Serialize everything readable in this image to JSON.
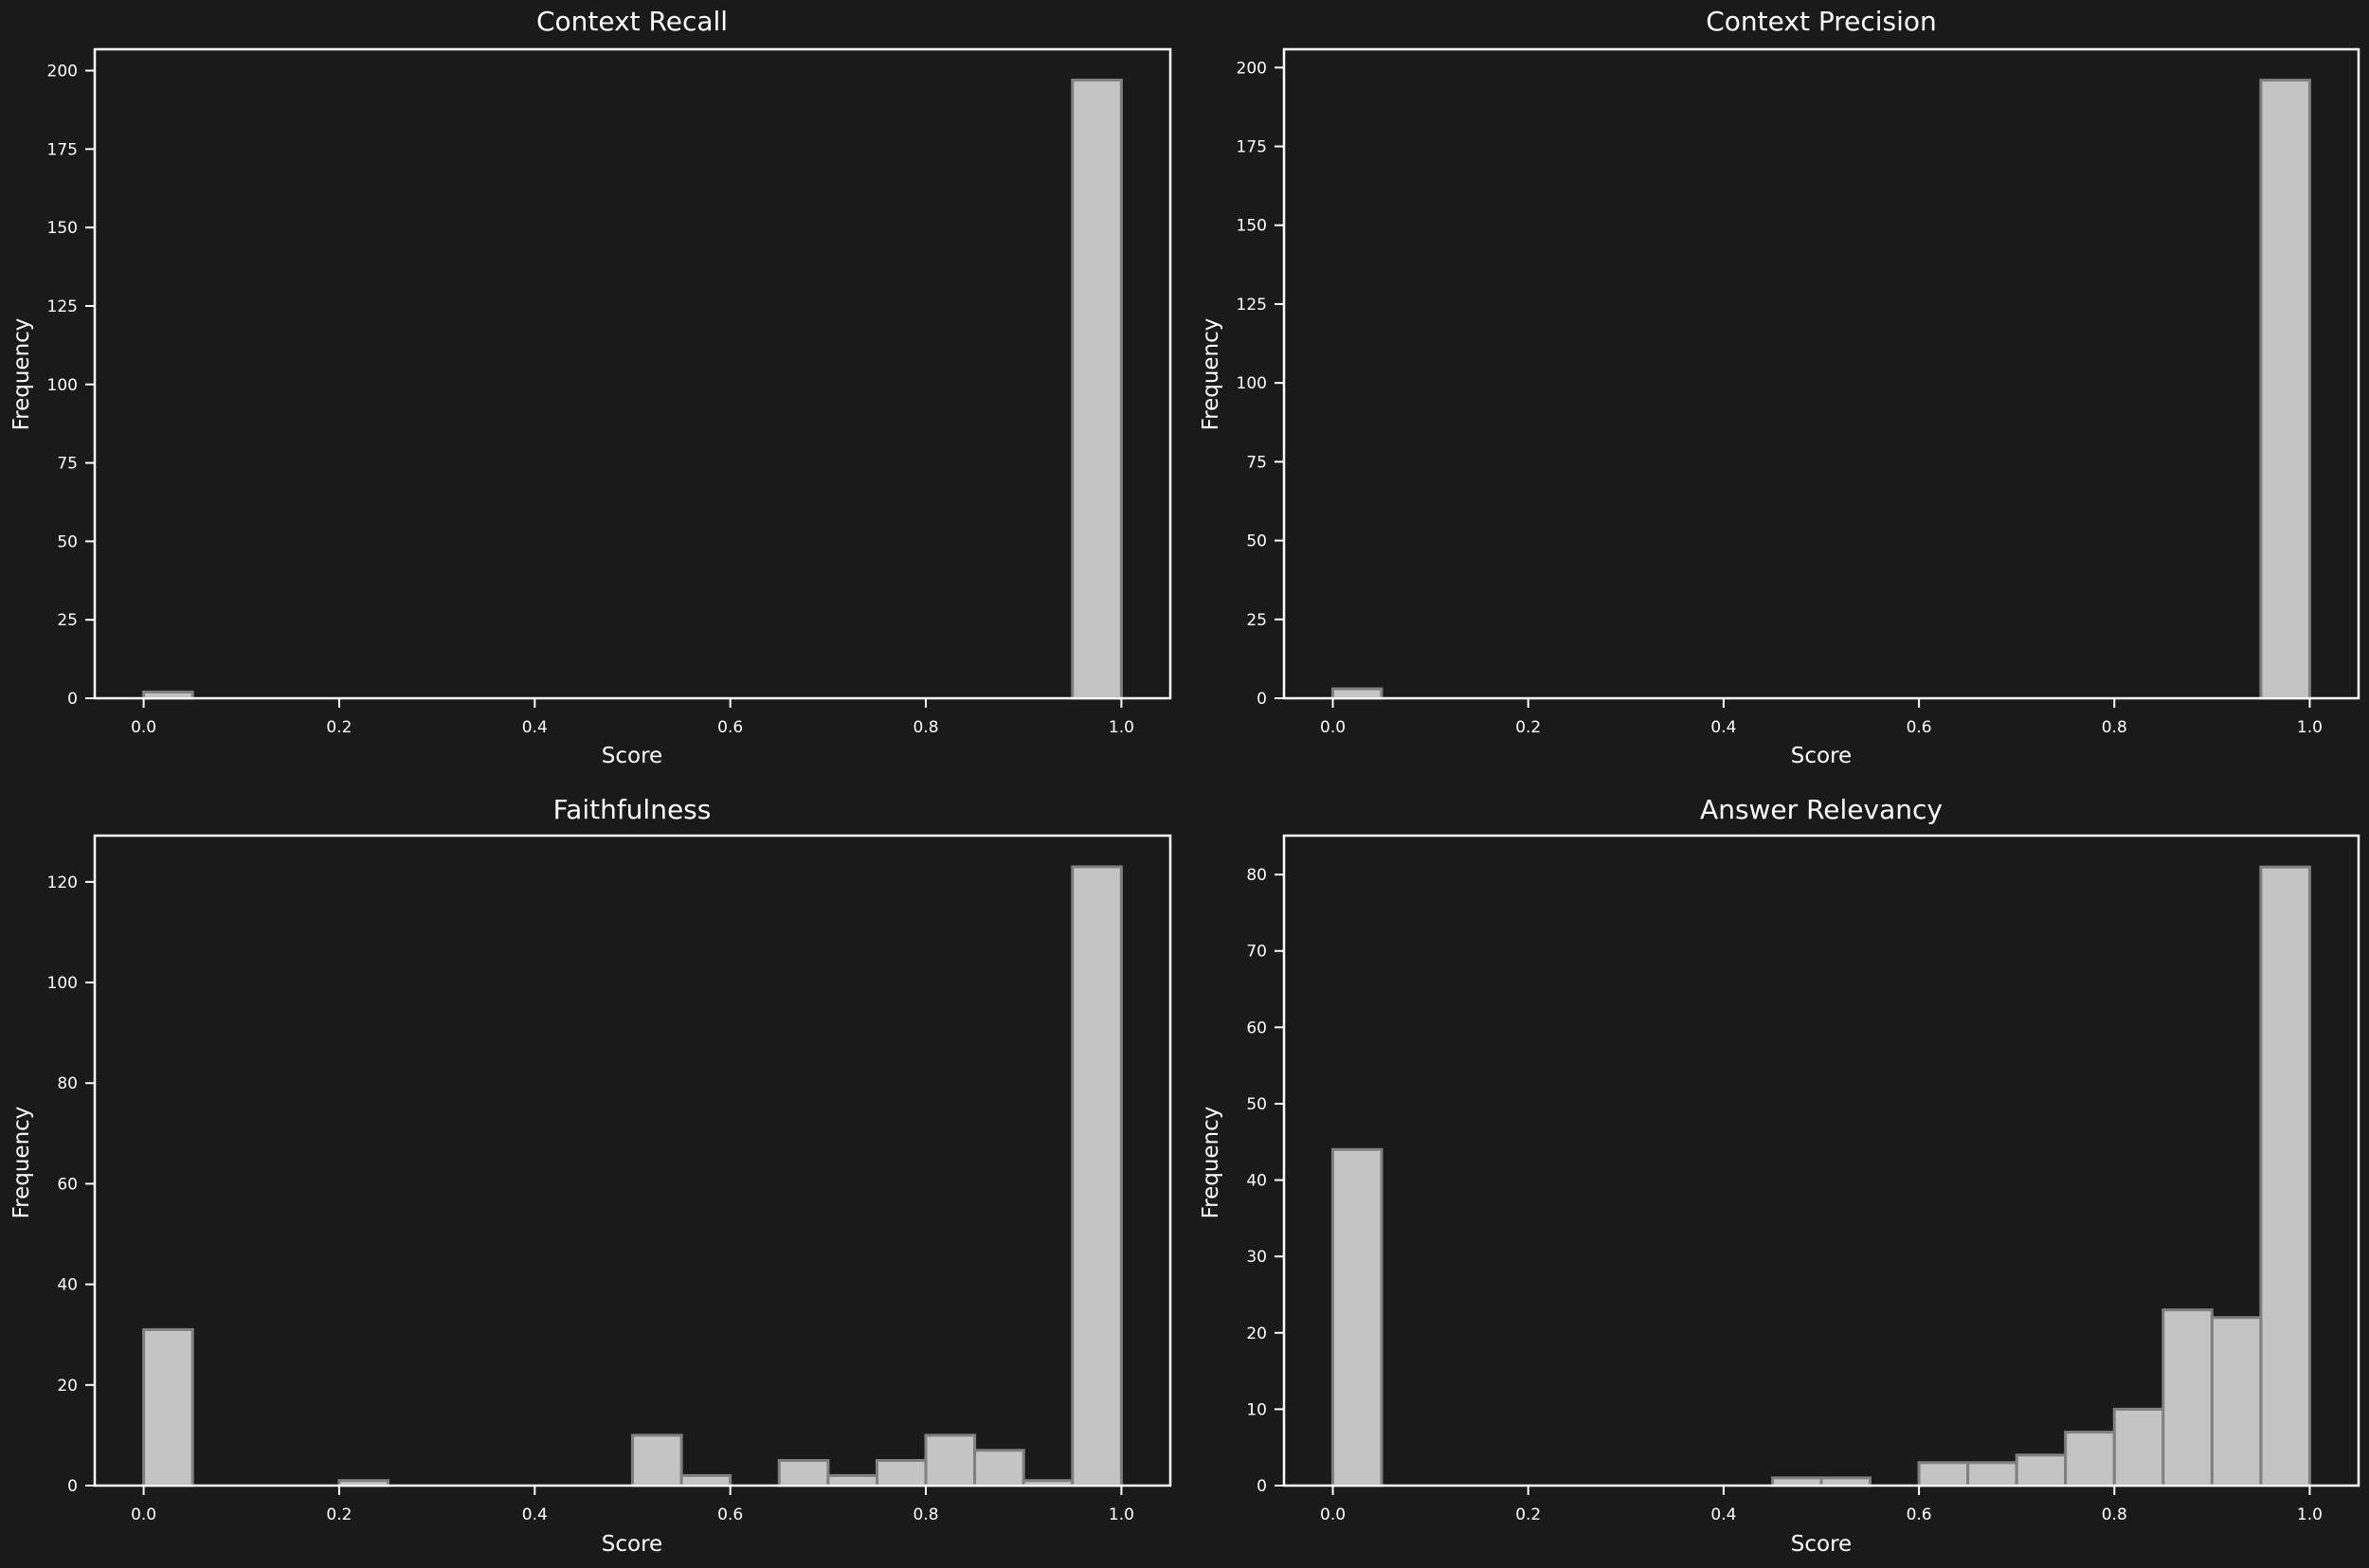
{
  "figure": {
    "background": "#1a1a1a",
    "bar_fill": "#c4c4c4",
    "bar_edge": "#808080",
    "axis_color": "#ffffff",
    "text_color": "#ffffff"
  },
  "chart_data": [
    {
      "type": "bar",
      "subtype": "histogram",
      "title": "Context Recall",
      "xlabel": "Score",
      "ylabel": "Frequency",
      "bins": 20,
      "bin_edges": [
        0.0,
        0.05,
        0.1,
        0.15,
        0.2,
        0.25,
        0.3,
        0.35,
        0.4,
        0.45,
        0.5,
        0.55,
        0.6,
        0.65,
        0.7,
        0.75,
        0.8,
        0.85,
        0.9,
        0.95,
        1.0
      ],
      "values": [
        2,
        0,
        0,
        0,
        0,
        0,
        0,
        0,
        0,
        0,
        0,
        0,
        0,
        0,
        0,
        0,
        0,
        0,
        0,
        197
      ],
      "xlim": [
        -0.05,
        1.05
      ],
      "ylim": [
        0,
        206.8
      ],
      "xticks": [
        "0.0",
        "0.2",
        "0.4",
        "0.6",
        "0.8",
        "1.0"
      ],
      "xtick_values": [
        0.0,
        0.2,
        0.4,
        0.6,
        0.8,
        1.0
      ],
      "yticks": [
        "0",
        "25",
        "50",
        "75",
        "100",
        "125",
        "150",
        "175",
        "200"
      ],
      "ytick_values": [
        0,
        25,
        50,
        75,
        100,
        125,
        150,
        175,
        200
      ],
      "grid": false,
      "legend": null
    },
    {
      "type": "bar",
      "subtype": "histogram",
      "title": "Context Precision",
      "xlabel": "Score",
      "ylabel": "Frequency",
      "bins": 20,
      "bin_edges": [
        0.0,
        0.05,
        0.1,
        0.15,
        0.2,
        0.25,
        0.3,
        0.35,
        0.4,
        0.45,
        0.5,
        0.55,
        0.6,
        0.65,
        0.7,
        0.75,
        0.8,
        0.85,
        0.9,
        0.95,
        1.0
      ],
      "values": [
        3,
        0,
        0,
        0,
        0,
        0,
        0,
        0,
        0,
        0,
        0,
        0,
        0,
        0,
        0,
        0,
        0,
        0,
        0,
        196
      ],
      "xlim": [
        -0.05,
        1.05
      ],
      "ylim": [
        0,
        205.8
      ],
      "xticks": [
        "0.0",
        "0.2",
        "0.4",
        "0.6",
        "0.8",
        "1.0"
      ],
      "xtick_values": [
        0.0,
        0.2,
        0.4,
        0.6,
        0.8,
        1.0
      ],
      "yticks": [
        "0",
        "25",
        "50",
        "75",
        "100",
        "125",
        "150",
        "175",
        "200"
      ],
      "ytick_values": [
        0,
        25,
        50,
        75,
        100,
        125,
        150,
        175,
        200
      ],
      "grid": false,
      "legend": null
    },
    {
      "type": "bar",
      "subtype": "histogram",
      "title": "Faithfulness",
      "xlabel": "Score",
      "ylabel": "Frequency",
      "bins": 20,
      "bin_edges": [
        0.0,
        0.05,
        0.1,
        0.15,
        0.2,
        0.25,
        0.3,
        0.35,
        0.4,
        0.45,
        0.5,
        0.55,
        0.6,
        0.65,
        0.7,
        0.75,
        0.8,
        0.85,
        0.9,
        0.95,
        1.0
      ],
      "values": [
        31,
        0,
        0,
        0,
        1,
        0,
        0,
        0,
        0,
        0,
        10,
        2,
        0,
        5,
        2,
        5,
        10,
        7,
        1,
        123
      ],
      "xlim": [
        -0.05,
        1.05
      ],
      "ylim": [
        0,
        129.2
      ],
      "xticks": [
        "0.0",
        "0.2",
        "0.4",
        "0.6",
        "0.8",
        "1.0"
      ],
      "xtick_values": [
        0.0,
        0.2,
        0.4,
        0.6,
        0.8,
        1.0
      ],
      "yticks": [
        "0",
        "20",
        "40",
        "60",
        "80",
        "100",
        "120"
      ],
      "ytick_values": [
        0,
        20,
        40,
        60,
        80,
        100,
        120
      ],
      "grid": false,
      "legend": null
    },
    {
      "type": "bar",
      "subtype": "histogram",
      "title": "Answer Relevancy",
      "xlabel": "Score",
      "ylabel": "Frequency",
      "bins": 20,
      "bin_edges": [
        0.0,
        0.05,
        0.1,
        0.15,
        0.2,
        0.25,
        0.3,
        0.35,
        0.4,
        0.45,
        0.5,
        0.55,
        0.6,
        0.65,
        0.7,
        0.75,
        0.8,
        0.85,
        0.9,
        0.95,
        1.0
      ],
      "values": [
        44,
        0,
        0,
        0,
        0,
        0,
        0,
        0,
        0,
        1,
        1,
        0,
        3,
        3,
        4,
        7,
        10,
        23,
        22,
        81
      ],
      "xlim": [
        -0.05,
        1.05
      ],
      "ylim": [
        0,
        85.1
      ],
      "xticks": [
        "0.0",
        "0.2",
        "0.4",
        "0.6",
        "0.8",
        "1.0"
      ],
      "xtick_values": [
        0.0,
        0.2,
        0.4,
        0.6,
        0.8,
        1.0
      ],
      "yticks": [
        "0",
        "10",
        "20",
        "30",
        "40",
        "50",
        "60",
        "70",
        "80"
      ],
      "ytick_values": [
        0,
        10,
        20,
        30,
        40,
        50,
        60,
        70,
        80
      ],
      "grid": false,
      "legend": null
    }
  ]
}
